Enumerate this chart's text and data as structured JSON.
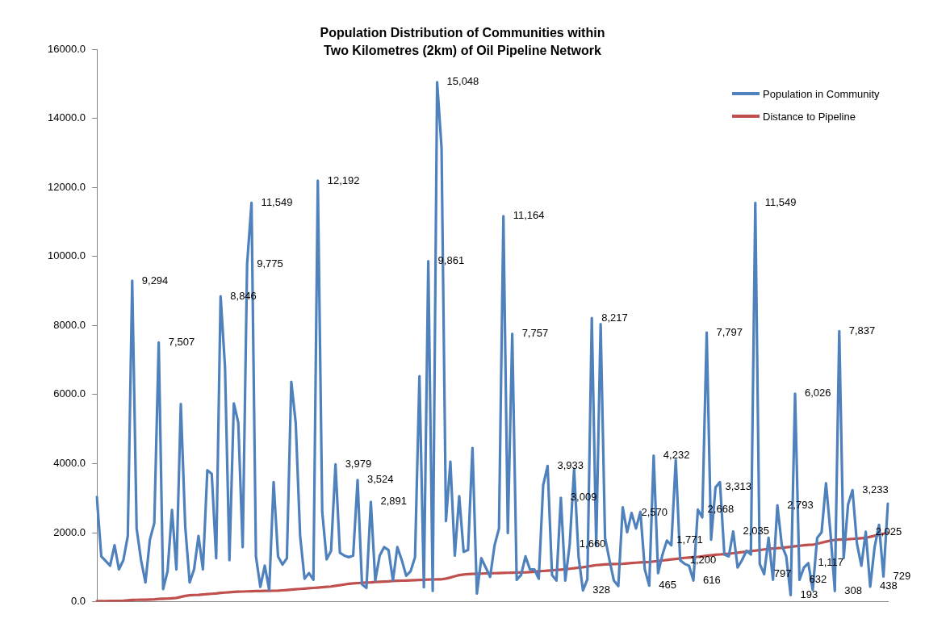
{
  "chart_data": {
    "type": "line",
    "title": "Population Distribution of Communities within\nTwo Kilometres (2km) of Oil Pipeline Network",
    "categories": [
      null,
      null,
      null,
      null,
      null,
      null,
      null,
      null,
      null,
      null,
      null,
      null,
      null,
      null,
      null,
      null,
      null,
      null,
      null,
      null,
      null,
      null,
      null,
      null,
      null,
      null,
      null,
      null,
      null,
      null,
      null,
      null,
      null,
      null,
      null,
      null,
      null,
      null,
      null,
      null,
      null,
      null,
      null,
      null,
      null,
      null,
      null,
      null,
      null,
      null,
      null,
      null,
      null,
      null,
      null,
      null,
      null,
      null,
      null,
      null,
      null,
      null,
      null,
      null,
      null,
      null,
      null,
      null,
      null,
      null,
      null,
      null,
      null,
      null,
      null,
      null,
      null,
      null,
      null,
      null,
      null,
      null,
      null,
      null,
      null,
      null,
      null,
      null,
      null,
      null,
      null,
      null,
      null,
      null,
      null,
      null,
      null,
      null,
      null,
      null,
      null,
      null,
      null,
      null,
      null,
      null,
      null,
      null,
      null,
      null,
      null,
      null,
      null,
      null,
      null,
      null,
      null,
      null,
      null,
      null,
      null,
      null,
      null,
      null,
      null,
      null,
      null,
      null,
      null,
      null,
      null,
      null,
      null,
      null,
      null,
      null,
      null,
      null,
      null,
      null,
      null,
      null,
      null,
      null,
      null,
      null,
      null,
      null,
      null,
      null,
      null,
      null,
      null,
      null,
      null,
      null,
      null,
      null,
      null,
      null,
      null,
      null,
      null,
      null,
      null,
      null,
      null,
      null,
      null,
      null,
      null,
      null,
      null,
      null,
      null,
      null,
      null,
      null,
      null,
      null
    ],
    "series": [
      {
        "name": "Population in Community",
        "color": "#4f81bd",
        "values": [
          3034,
          1313,
          1180,
          1044,
          1635,
          936,
          1205,
          1905,
          9294,
          2120,
          1205,
          560,
          1800,
          2280,
          7507,
          366,
          882,
          2658,
          936,
          5724,
          2173,
          560,
          936,
          1905,
          936,
          3809,
          3701,
          1259,
          8846,
          6800,
          1205,
          5746,
          5186,
          1582,
          9775,
          11549,
          1313,
          430,
          1044,
          344,
          3465,
          1313,
          1076,
          1259,
          6370,
          5186,
          1905,
          667,
          829,
          635,
          12192,
          2604,
          1227,
          1474,
          3979,
          1420,
          1334,
          1291,
          1334,
          3524,
          506,
          398,
          2891,
          613,
          1334,
          1582,
          1496,
          613,
          1582,
          1205,
          753,
          882,
          1291,
          6531,
          420,
          9861,
          312,
          15048,
          13150,
          2335,
          4057,
          1334,
          3056,
          1442,
          1496,
          4455,
          237,
          1259,
          990,
          721,
          1635,
          2120,
          11164,
          1991,
          7757,
          635,
          775,
          1313,
          936,
          936,
          667,
          3379,
          3933,
          775,
          613,
          3009,
          613,
          1660,
          3841,
          1313,
          328,
          646,
          8217,
          1640,
          8038,
          1851,
          1205,
          613,
          452,
          2733,
          2012,
          2570,
          2120,
          2604,
          936,
          465,
          4232,
          829,
          1367,
          1771,
          1635,
          4110,
          1200,
          1098,
          1044,
          616,
          2668,
          2443,
          7797,
          1797,
          3313,
          3465,
          1367,
          1313,
          2035,
          990,
          1205,
          1474,
          1367,
          11549,
          1098,
          797,
          1851,
          635,
          2793,
          1635,
          1313,
          193,
          6026,
          632,
          990,
          1117,
          344,
          1851,
          2012,
          3432,
          2012,
          308,
          7837,
          1259,
          2819,
          3233,
          1689,
          1044,
          2025,
          438,
          1582,
          2227,
          729,
          2840
        ],
        "value_labels": [
          null,
          null,
          null,
          null,
          null,
          null,
          null,
          null,
          "9,294",
          null,
          null,
          null,
          null,
          null,
          "7,507",
          null,
          null,
          null,
          null,
          null,
          null,
          null,
          null,
          null,
          null,
          null,
          null,
          null,
          "8,846",
          null,
          null,
          null,
          null,
          null,
          "9,775",
          "11,549",
          null,
          null,
          null,
          null,
          null,
          null,
          null,
          null,
          null,
          null,
          null,
          null,
          null,
          null,
          "12,192",
          null,
          null,
          null,
          "3,979",
          null,
          null,
          null,
          null,
          "3,524",
          null,
          null,
          "2,891",
          null,
          null,
          null,
          null,
          null,
          null,
          null,
          null,
          null,
          null,
          null,
          null,
          "9,861",
          null,
          "15,048",
          null,
          null,
          null,
          null,
          null,
          null,
          null,
          null,
          null,
          null,
          null,
          null,
          null,
          null,
          "11,164",
          null,
          "7,757",
          null,
          null,
          null,
          null,
          null,
          null,
          null,
          "3,933",
          null,
          null,
          "3,009",
          null,
          "1,660",
          null,
          null,
          "328",
          null,
          "8,217",
          null,
          null,
          null,
          null,
          null,
          null,
          null,
          null,
          "2,570",
          null,
          null,
          null,
          "465",
          "4,232",
          null,
          null,
          "1,771",
          null,
          null,
          "1,200",
          null,
          null,
          "616",
          "2,668",
          null,
          "7,797",
          null,
          "3,313",
          null,
          null,
          null,
          "2,035",
          null,
          null,
          null,
          null,
          "11,549",
          null,
          "797",
          null,
          null,
          "2,793",
          null,
          null,
          "193",
          "6,026",
          "632",
          null,
          "1,117",
          null,
          null,
          null,
          null,
          null,
          "308",
          "7,837",
          null,
          null,
          "3,233",
          null,
          null,
          "2,025",
          "438",
          null,
          null,
          "729",
          null
        ]
      },
      {
        "name": "Distance to Pipeline",
        "color": "#c0504d",
        "values": [
          20,
          20,
          20,
          25,
          25,
          25,
          30,
          40,
          50,
          55,
          60,
          60,
          65,
          70,
          80,
          85,
          90,
          100,
          110,
          140,
          170,
          185,
          195,
          200,
          210,
          220,
          230,
          240,
          255,
          265,
          275,
          285,
          290,
          295,
          300,
          305,
          310,
          310,
          315,
          315,
          318,
          320,
          330,
          340,
          350,
          360,
          370,
          380,
          390,
          400,
          410,
          420,
          430,
          440,
          460,
          480,
          500,
          520,
          530,
          540,
          550,
          555,
          560,
          570,
          580,
          585,
          590,
          600,
          605,
          610,
          615,
          620,
          625,
          630,
          635,
          640,
          645,
          648,
          650,
          670,
          700,
          740,
          770,
          790,
          800,
          805,
          810,
          815,
          820,
          823,
          826,
          830,
          835,
          838,
          842,
          846,
          848,
          850,
          860,
          870,
          880,
          890,
          900,
          910,
          920,
          930,
          940,
          955,
          970,
          985,
          1000,
          1020,
          1040,
          1060,
          1070,
          1080,
          1085,
          1090,
          1095,
          1100,
          1110,
          1120,
          1130,
          1140,
          1145,
          1150,
          1165,
          1180,
          1195,
          1210,
          1225,
          1240,
          1255,
          1270,
          1280,
          1290,
          1300,
          1315,
          1330,
          1345,
          1360,
          1370,
          1380,
          1390,
          1405,
          1420,
          1435,
          1450,
          1465,
          1480,
          1495,
          1515,
          1530,
          1540,
          1550,
          1560,
          1575,
          1590,
          1605,
          1620,
          1635,
          1645,
          1650,
          1680,
          1710,
          1740,
          1770,
          1790,
          1800,
          1805,
          1810,
          1820,
          1830,
          1840,
          1850,
          1880,
          1910,
          1940,
          1970,
          2000
        ]
      }
    ],
    "ylim": [
      0,
      16000
    ],
    "yticks": [
      {
        "value": 0,
        "label": "0.0"
      },
      {
        "value": 2000,
        "label": "2000.0"
      },
      {
        "value": 4000,
        "label": "4000.0"
      },
      {
        "value": 6000,
        "label": "6000.0"
      },
      {
        "value": 8000,
        "label": "8000.0"
      },
      {
        "value": 10000,
        "label": "10000.0"
      },
      {
        "value": 12000,
        "label": "12000.0"
      },
      {
        "value": 14000,
        "label": "14000.0"
      },
      {
        "value": 16000,
        "label": "16000.0"
      }
    ],
    "legend": "top right",
    "marker": "none",
    "line_style": "solid"
  }
}
